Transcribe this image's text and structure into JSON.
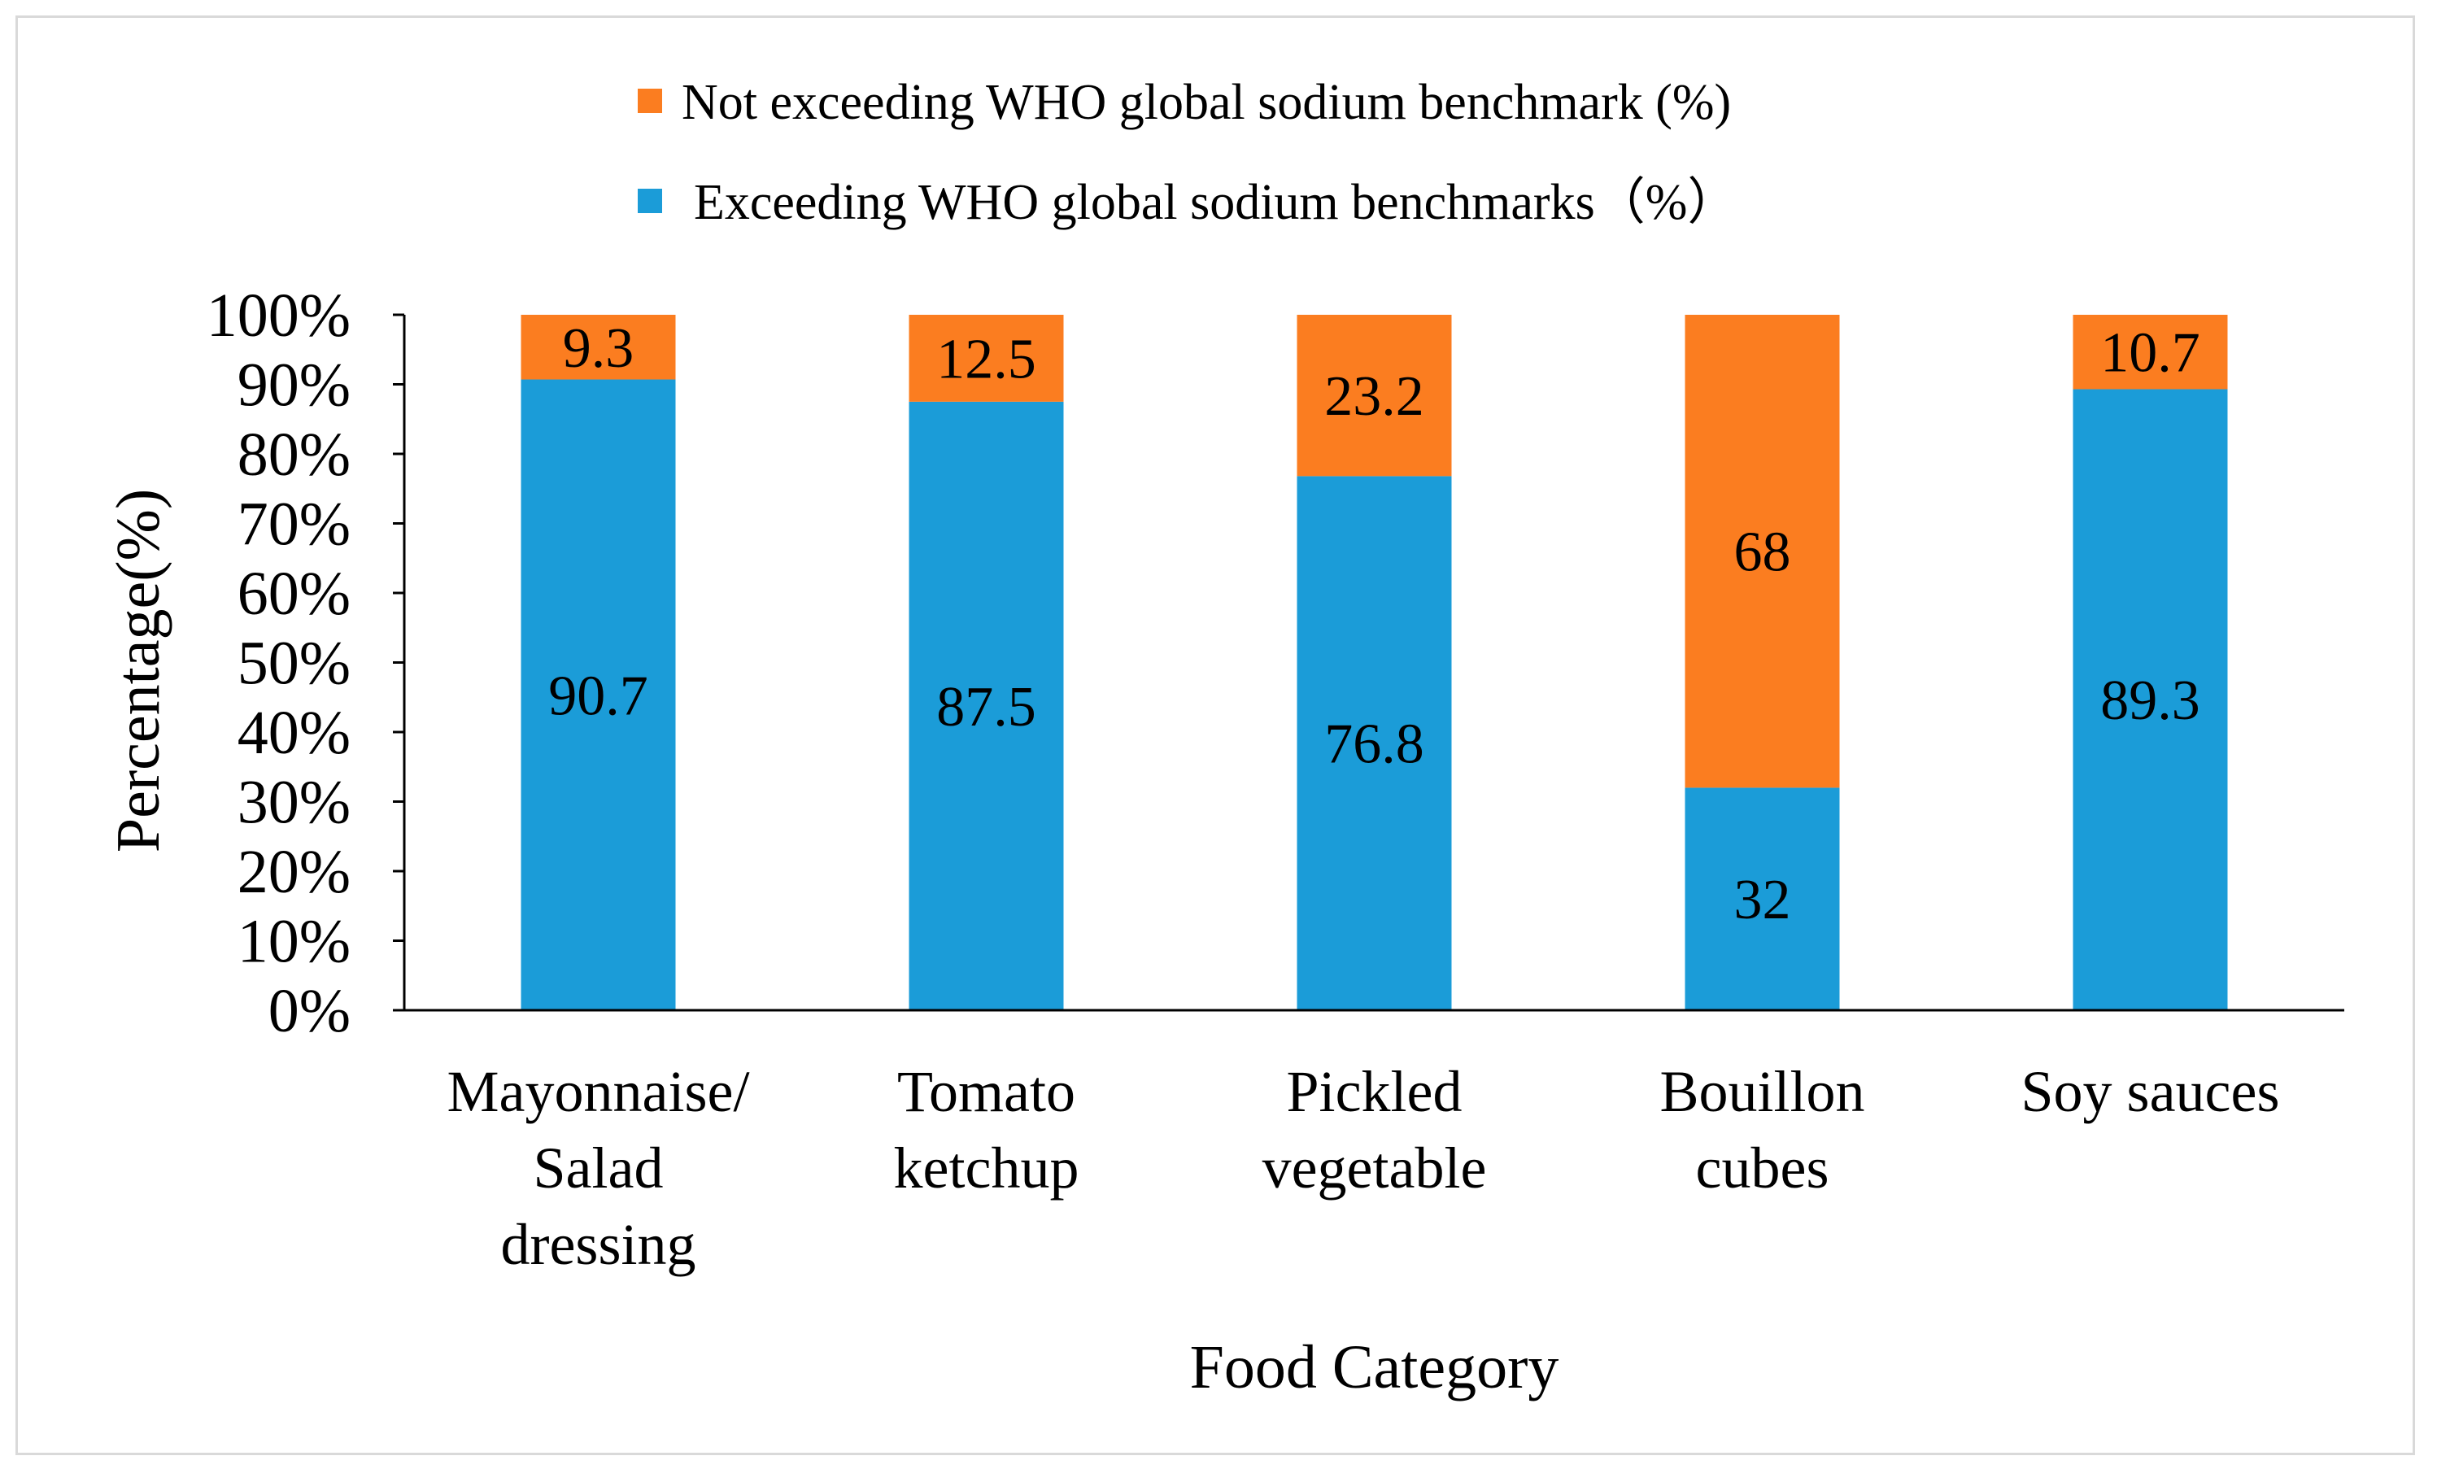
{
  "chart_data": {
    "type": "bar",
    "stacked": true,
    "title": "",
    "xlabel": "Food Category",
    "ylabel": "Percentage(%)",
    "ylim": [
      0,
      100
    ],
    "yticks": [
      "0%",
      "10%",
      "20%",
      "30%",
      "40%",
      "50%",
      "60%",
      "70%",
      "80%",
      "90%",
      "100%"
    ],
    "categories": [
      [
        "Mayonnaise/",
        "Salad",
        "dressing"
      ],
      [
        "Tomato",
        "ketchup"
      ],
      [
        "Pickled",
        "vegetable"
      ],
      [
        "Bouillon",
        "cubes"
      ],
      [
        "Soy sauces"
      ]
    ],
    "series": [
      {
        "name": "Exceeding  WHO global sodium benchmarks（%）",
        "color": "#1b9cd8",
        "values": [
          90.7,
          87.5,
          76.8,
          32,
          89.3
        ],
        "labels": [
          "90.7",
          "87.5",
          "76.8",
          "32",
          "89.3"
        ]
      },
      {
        "name": "Not exceeding WHO global sodium benchmark (%)",
        "color": "#fb7d20",
        "values": [
          9.3,
          12.5,
          23.2,
          68,
          10.7
        ],
        "labels": [
          "9.3",
          "12.5",
          "23.2",
          "68",
          "10.7"
        ]
      }
    ],
    "legend": {
      "placement": "top-center",
      "order": [
        1,
        0
      ]
    },
    "grid": false
  }
}
